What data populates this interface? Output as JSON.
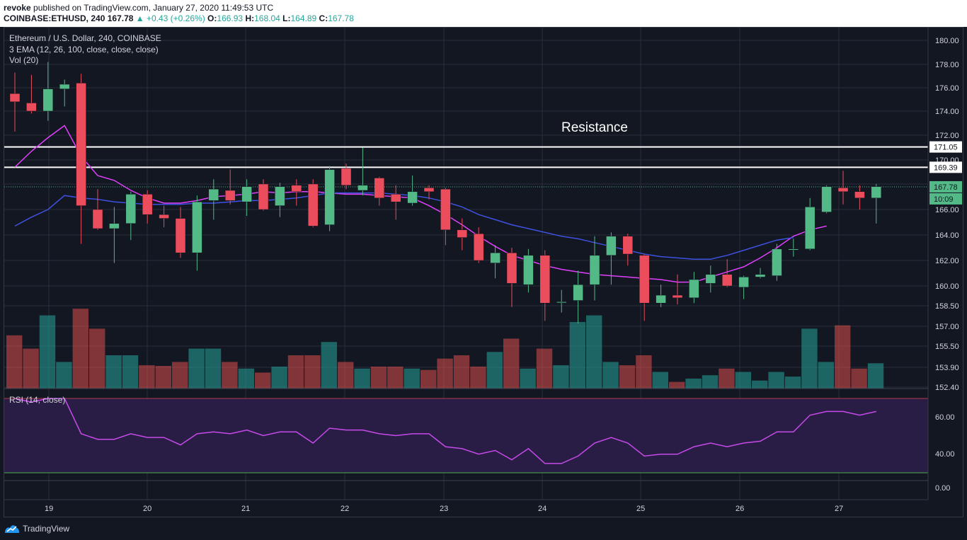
{
  "header": {
    "publisher": "revoke",
    "published_text": "published on TradingView.com, January 27, 2020 11:49:53 UTC",
    "symbol": "COINBASE:ETHUSD, 240",
    "last": "167.78",
    "change": "▲ +0.43 (+0.26%)",
    "o_label": "O:",
    "o": "166.93",
    "h_label": "H:",
    "h": "168.04",
    "l_label": "L:",
    "l": "164.89",
    "c_label": "C:",
    "c": "167.78"
  },
  "legend": {
    "title": "Ethereum / U.S. Dollar, 240, COINBASE",
    "ema": "3 EMA (12, 26, 100, close, close, close)",
    "vol": "Vol (20)",
    "rsi": "RSI (14, close)"
  },
  "annotation": "Resistance",
  "brand": "TradingView",
  "colors": {
    "background": "#131722",
    "up": "#53b987",
    "down": "#eb4d5c",
    "ema_fast": "#e040fb",
    "ema_slow": "#3f51e0",
    "rsi_line": "#c54ae8",
    "rsi_band": "#2a1d45",
    "grid": "#2a2e39",
    "resistance": "#ffffff"
  },
  "chart_data": {
    "type": "candlestick",
    "x_ticks": [
      "19",
      "20",
      "21",
      "22",
      "23",
      "24",
      "25",
      "26",
      "27"
    ],
    "y_ticks": [
      "180.00",
      "178.00",
      "176.00",
      "174.00",
      "172.00",
      "170.00",
      "168.00",
      "166.00",
      "164.00",
      "162.00",
      "160.00",
      "158.50",
      "157.00",
      "155.50",
      "153.90",
      "152.40"
    ],
    "price_tags": [
      {
        "label": "171.05",
        "value": 171.05
      },
      {
        "label": "169.39",
        "value": 169.39
      },
      {
        "label": "167.78",
        "value": 167.78
      },
      {
        "label": "10:09",
        "value": 166.8
      }
    ],
    "resistance_levels": [
      171.05,
      169.39
    ],
    "last_price": 167.78,
    "candles": [
      [
        175.5,
        174.8,
        177.3,
        172.3
      ],
      [
        174.7,
        174.0,
        177.1,
        173.8
      ],
      [
        174.0,
        175.9,
        178.2,
        173.2
      ],
      [
        175.9,
        176.3,
        176.7,
        174.4
      ],
      [
        176.4,
        166.3,
        177.2,
        163.3
      ],
      [
        166.0,
        164.5,
        167.6,
        164.4
      ],
      [
        164.5,
        164.9,
        166.2,
        161.8
      ],
      [
        164.9,
        167.2,
        167.4,
        163.6
      ],
      [
        167.2,
        165.6,
        167.5,
        164.9
      ],
      [
        165.6,
        165.3,
        166.3,
        164.6
      ],
      [
        165.3,
        162.6,
        166.2,
        162.2
      ],
      [
        162.6,
        166.6,
        167.1,
        161.2
      ],
      [
        166.7,
        167.6,
        168.4,
        165.2
      ],
      [
        167.5,
        166.7,
        169.2,
        166.4
      ],
      [
        166.6,
        167.8,
        168.4,
        165.5
      ],
      [
        168.0,
        166.0,
        168.4,
        165.9
      ],
      [
        166.3,
        167.8,
        168.1,
        165.4
      ],
      [
        167.9,
        167.4,
        168.4,
        166.3
      ],
      [
        168.0,
        164.7,
        168.4,
        164.6
      ],
      [
        164.8,
        169.2,
        169.5,
        164.3
      ],
      [
        169.3,
        167.9,
        169.7,
        167.6
      ],
      [
        167.5,
        167.9,
        171.0,
        167.1
      ],
      [
        168.5,
        166.9,
        168.6,
        166.3
      ],
      [
        167.2,
        166.6,
        167.9,
        165.2
      ],
      [
        166.5,
        167.4,
        168.7,
        166.3
      ],
      [
        167.7,
        167.4,
        167.9,
        166.8
      ],
      [
        167.6,
        164.4,
        167.7,
        163.2
      ],
      [
        164.4,
        163.8,
        165.3,
        162.8
      ],
      [
        164.1,
        162.0,
        164.6,
        161.8
      ],
      [
        161.8,
        162.6,
        163.2,
        160.6
      ],
      [
        162.6,
        160.2,
        163.0,
        158.4
      ],
      [
        160.1,
        162.4,
        162.9,
        159.5
      ],
      [
        162.4,
        158.7,
        162.8,
        157.4
      ],
      [
        158.8,
        158.8,
        159.7,
        158.0
      ],
      [
        158.9,
        160.1,
        161.2,
        157.2
      ],
      [
        160.1,
        162.4,
        163.9,
        158.9
      ],
      [
        162.4,
        163.9,
        164.2,
        160.1
      ],
      [
        163.9,
        162.5,
        164.1,
        161.6
      ],
      [
        162.4,
        158.7,
        162.5,
        157.4
      ],
      [
        158.7,
        159.3,
        160.1,
        158.4
      ],
      [
        159.3,
        159.1,
        160.9,
        158.6
      ],
      [
        159.1,
        160.5,
        161.1,
        158.7
      ],
      [
        160.2,
        160.9,
        161.6,
        159.5
      ],
      [
        160.9,
        160.0,
        162.1,
        159.9
      ],
      [
        159.9,
        160.7,
        160.8,
        159.0
      ],
      [
        160.7,
        160.9,
        161.4,
        160.6
      ],
      [
        160.8,
        162.9,
        163.3,
        160.4
      ],
      [
        162.9,
        162.9,
        163.7,
        162.3
      ],
      [
        162.9,
        166.2,
        166.9,
        162.8
      ],
      [
        165.8,
        167.8,
        167.9,
        165.7
      ],
      [
        167.7,
        167.4,
        169.1,
        166.4
      ],
      [
        167.4,
        166.9,
        167.9,
        166.0
      ],
      [
        166.9,
        167.8,
        168.0,
        164.9
      ]
    ],
    "volume": [
      8,
      6,
      11,
      4,
      12,
      9,
      5,
      5,
      3.5,
      3.4,
      4,
      6,
      6,
      4,
      3,
      2.4,
      3.3,
      5,
      5,
      7,
      4,
      3,
      3.3,
      3.3,
      3,
      2.8,
      4.5,
      5,
      3.3,
      5.5,
      7.5,
      3,
      6,
      3.5,
      10,
      11,
      4,
      3.5,
      5,
      2.5,
      1,
      1.5,
      2,
      3,
      2.5,
      1.2,
      2.5,
      1.8,
      9,
      4,
      9.5,
      3,
      3.8
    ],
    "ema_fast": [
      169.4,
      170.7,
      171.8,
      172.8,
      170.3,
      168.7,
      168.3,
      167.5,
      166.9,
      166.5,
      166.5,
      166.7,
      167.0,
      167.1,
      167.2,
      167.4,
      167.3,
      167.4,
      167.4,
      167.3,
      167.2,
      167.2,
      167.1,
      167.0,
      166.9,
      166.3,
      165.6,
      164.8,
      163.9,
      163.1,
      162.4,
      162.0,
      161.6,
      161.3,
      161.1,
      160.9,
      160.8,
      160.7,
      160.6,
      160.5,
      160.3,
      160.3,
      160.7,
      161.1,
      161.5,
      162.2,
      163.0,
      163.9,
      164.4,
      164.7
    ],
    "ema_slow": [
      164.7,
      165.4,
      166.0,
      167.1,
      166.9,
      166.8,
      166.6,
      166.5,
      166.4,
      166.4,
      166.4,
      166.5,
      166.5,
      166.6,
      166.7,
      166.7,
      166.8,
      166.9,
      167.1,
      167.3,
      167.3,
      167.3,
      167.3,
      167.2,
      167.1,
      166.9,
      166.6,
      166.2,
      165.6,
      165.2,
      164.8,
      164.5,
      164.2,
      163.9,
      163.7,
      163.4,
      163.1,
      162.8,
      162.5,
      162.3,
      162.2,
      162.1,
      162.1,
      162.4,
      162.8,
      163.2,
      163.6,
      163.8
    ],
    "rsi": [
      70,
      68,
      70,
      70,
      51,
      48,
      48,
      51,
      49,
      49,
      45,
      51,
      52,
      51,
      53,
      50,
      52,
      52,
      46,
      54,
      53,
      53,
      51,
      50,
      51,
      51,
      44,
      43,
      40,
      42,
      37,
      43,
      35,
      35,
      39,
      46,
      49,
      46,
      39,
      40,
      40,
      44,
      46,
      44,
      46,
      47,
      52,
      52,
      61,
      63,
      63,
      61,
      63
    ],
    "rsi_band": [
      30,
      70
    ],
    "rsi_ticks": [
      "60.00",
      "40.00",
      "0.00"
    ]
  }
}
